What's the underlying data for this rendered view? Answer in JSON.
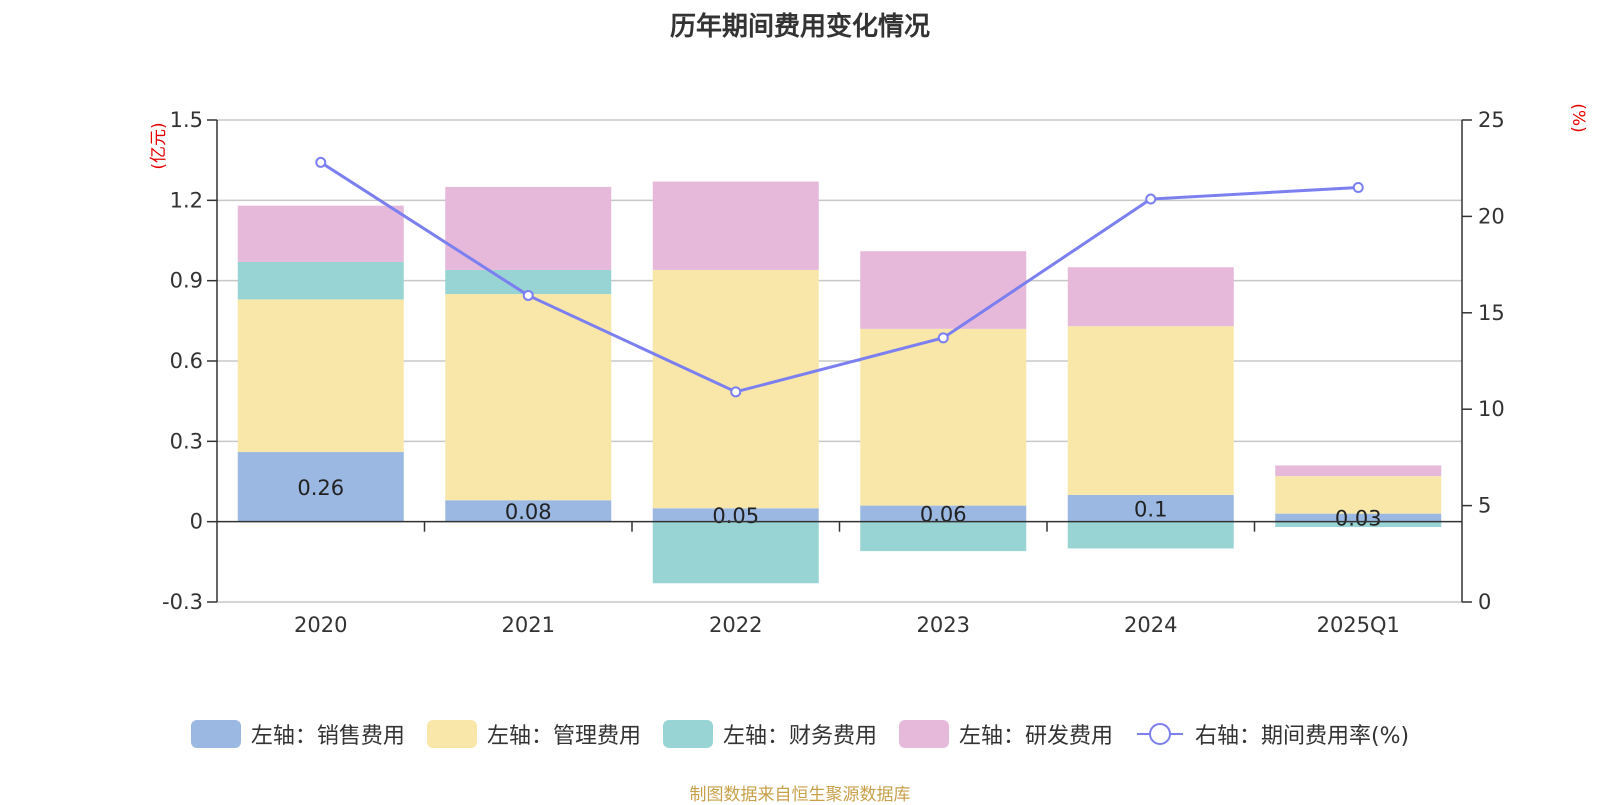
{
  "chart_data": {
    "type": "bar",
    "title": "历年期间费用变化情况",
    "categories": [
      "2020",
      "2021",
      "2022",
      "2023",
      "2024",
      "2025Q1"
    ],
    "left_axis": {
      "unit": "(亿元)",
      "ylim": [
        -0.3,
        1.5
      ],
      "ticks": [
        "-0.3",
        "0",
        "0.3",
        "0.6",
        "0.9",
        "1.2",
        "1.5"
      ]
    },
    "right_axis": {
      "unit": "(%)",
      "ylim": [
        0,
        25
      ],
      "ticks": [
        "0",
        "5",
        "10",
        "15",
        "20",
        "25"
      ]
    },
    "stacked": true,
    "grid": true,
    "legend_position": "bottom",
    "series": [
      {
        "name": "左轴：销售费用",
        "axis": "left",
        "color": "#9bb8e2",
        "values": [
          0.26,
          0.08,
          0.05,
          0.06,
          0.1,
          0.03
        ],
        "data_labels": [
          "0.26",
          "0.08",
          "0.05",
          "0.06",
          "0.1",
          "0.03"
        ]
      },
      {
        "name": "左轴：管理费用",
        "axis": "left",
        "color": "#f8e7a8",
        "values": [
          0.57,
          0.77,
          0.89,
          0.66,
          0.63,
          0.14
        ]
      },
      {
        "name": "左轴：财务费用",
        "axis": "left",
        "color": "#98d4d4",
        "values": [
          0.14,
          0.09,
          -0.23,
          -0.11,
          -0.1,
          -0.02
        ]
      },
      {
        "name": "左轴：研发费用",
        "axis": "left",
        "color": "#e6b9da",
        "values": [
          0.21,
          0.31,
          0.33,
          0.29,
          0.22,
          0.04
        ]
      },
      {
        "name": "右轴：期间费用率(%)",
        "axis": "right",
        "type": "line",
        "color": "#7b7ff0",
        "values": [
          22.8,
          15.9,
          10.9,
          13.7,
          20.9,
          21.5
        ]
      }
    ]
  },
  "footer": {
    "source": "制图数据来自恒生聚源数据库"
  }
}
